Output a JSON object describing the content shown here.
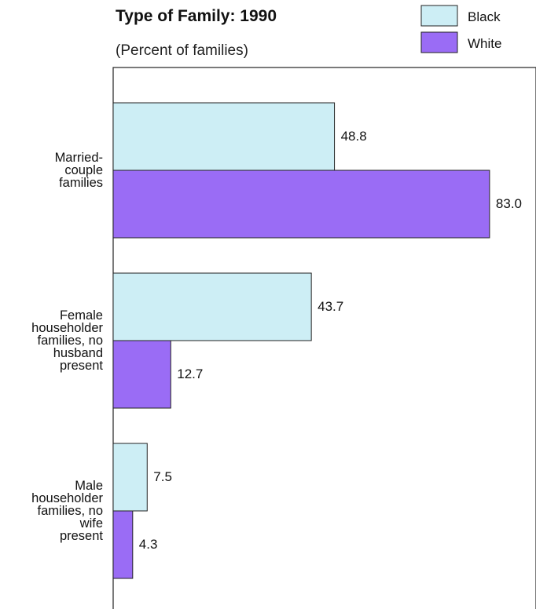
{
  "chart_data": {
    "type": "bar",
    "orientation": "horizontal",
    "title": "Type of Family:  1990",
    "subtitle": "(Percent of families)",
    "categories": [
      [
        "Married-",
        "couple",
        "families"
      ],
      [
        "Female",
        "householder",
        "families, no",
        "husband",
        "present"
      ],
      [
        "Male",
        "householder",
        "families, no",
        "wife",
        "present"
      ]
    ],
    "series": [
      {
        "name": "Black",
        "color": "#cdeef5",
        "values": [
          48.8,
          43.7,
          7.5
        ],
        "labels": [
          "48.8",
          "43.7",
          "7.5"
        ]
      },
      {
        "name": "White",
        "color": "#9a6cf5",
        "values": [
          83.0,
          12.7,
          4.3
        ],
        "labels": [
          "83.0",
          "12.7",
          "4.3"
        ]
      }
    ],
    "xlim": [
      0,
      90
    ],
    "grid": false,
    "legend_position": "top-right",
    "value_labels": true
  }
}
